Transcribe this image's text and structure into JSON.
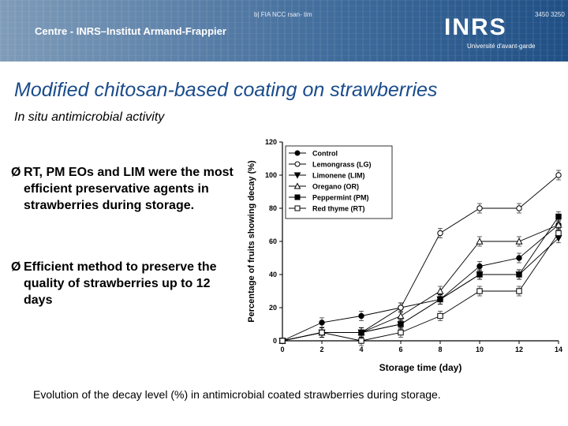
{
  "header": {
    "small_left": "b| FIA NCC rsan- tim",
    "small_right": "3450 3250",
    "institute": "Centre - INRS–Institut Armand-Frappier",
    "logo": "INRS",
    "tagline": "Université d'avant-garde"
  },
  "slide": {
    "title": "Modified chitosan-based coating on strawberries",
    "subtitle_italic": "In situ",
    "subtitle_rest": " antimicrobial activity",
    "bullets": [
      "RT, PM EOs and LIM were the most efficient preservative agents in strawberries during storage.",
      "Efficient method to preserve the quality of strawberries up to 12 days"
    ],
    "bullet_symbol": "Ø",
    "caption": "Evolution of the decay level (%) in antimicrobial coated strawberries during storage."
  },
  "chart_data": {
    "type": "line",
    "xlabel": "Storage time (day)",
    "ylabel": "Percentage of fruits showing decay (%)",
    "xlim": [
      0,
      14
    ],
    "ylim": [
      0,
      120
    ],
    "xticks": [
      0,
      2,
      4,
      6,
      8,
      10,
      12,
      14
    ],
    "yticks": [
      0,
      20,
      40,
      60,
      80,
      100,
      120
    ],
    "legend_position": "top-left",
    "series": [
      {
        "name": "Control",
        "marker": "circle-filled",
        "x": [
          0,
          2,
          4,
          6,
          8,
          10,
          12,
          14
        ],
        "y": [
          0,
          11,
          15,
          20,
          25,
          45,
          50,
          70
        ]
      },
      {
        "name": "Lemongrass (LG)",
        "marker": "circle-open",
        "x": [
          0,
          2,
          4,
          6,
          8,
          10,
          12,
          14
        ],
        "y": [
          0,
          5,
          5,
          20,
          65,
          80,
          80,
          100
        ]
      },
      {
        "name": "Limonene (LIM)",
        "marker": "triangle-down-filled",
        "x": [
          0,
          2,
          4,
          6,
          8,
          10,
          12,
          14
        ],
        "y": [
          0,
          5,
          5,
          10,
          25,
          40,
          40,
          62
        ]
      },
      {
        "name": "Oregano (OR)",
        "marker": "triangle-up-open",
        "x": [
          0,
          2,
          4,
          6,
          8,
          10,
          12,
          14
        ],
        "y": [
          0,
          5,
          5,
          15,
          30,
          60,
          60,
          70
        ]
      },
      {
        "name": "Peppermint (PM)",
        "marker": "square-filled",
        "x": [
          0,
          2,
          4,
          6,
          8,
          10,
          12,
          14
        ],
        "y": [
          0,
          5,
          5,
          10,
          25,
          40,
          40,
          75
        ]
      },
      {
        "name": "Red thyme (RT)",
        "marker": "square-open",
        "x": [
          0,
          2,
          4,
          6,
          8,
          10,
          12,
          14
        ],
        "y": [
          0,
          5,
          0,
          5,
          15,
          30,
          30,
          65
        ]
      }
    ]
  }
}
